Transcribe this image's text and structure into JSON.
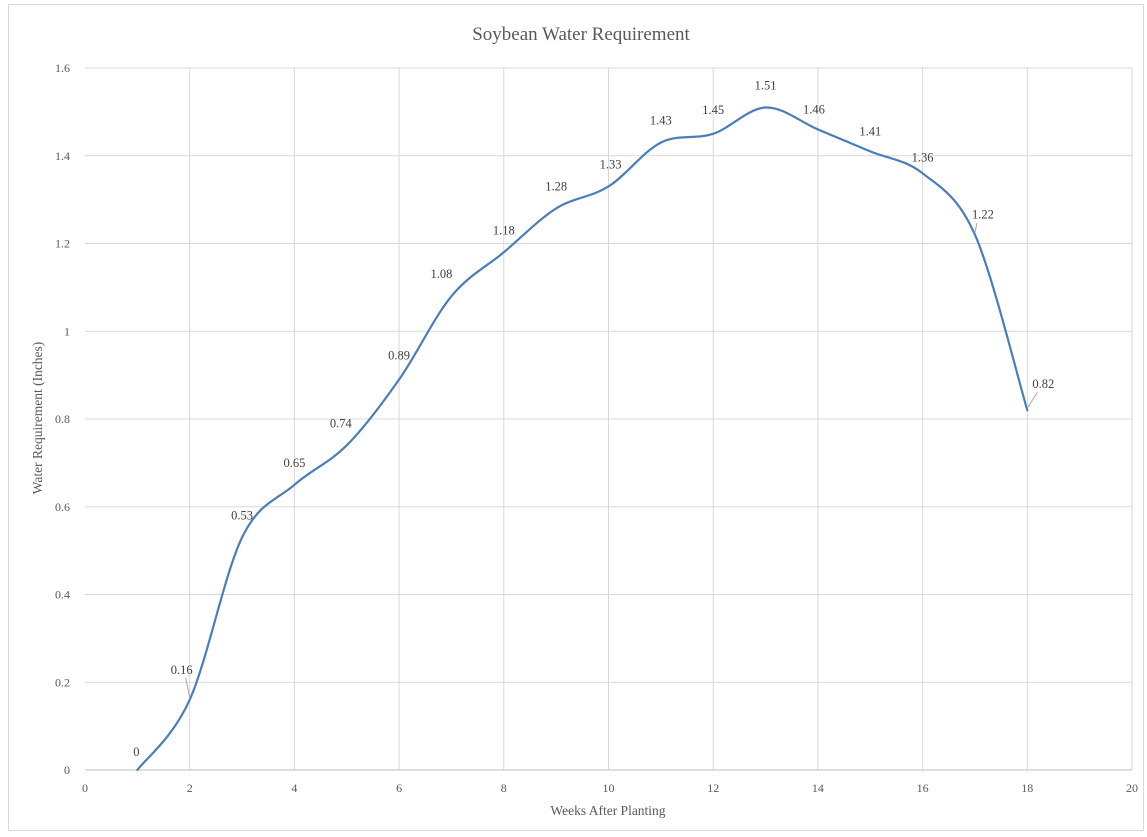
{
  "chart_data": {
    "type": "line",
    "smoothed": true,
    "title": "Soybean Water Requirement",
    "xlabel": "Weeks After Planting",
    "ylabel": "Water Requirement (Inches)",
    "xlim": [
      0,
      20
    ],
    "ylim": [
      0,
      1.6
    ],
    "xticks": [
      "0",
      "2",
      "4",
      "6",
      "8",
      "10",
      "12",
      "14",
      "16",
      "18",
      "20"
    ],
    "yticks": [
      "0",
      "0.2",
      "0.4",
      "0.6",
      "0.8",
      "1",
      "1.2",
      "1.4",
      "1.6"
    ],
    "grid": true,
    "legend": "none",
    "series_color": "#4a7ebb",
    "series": [
      {
        "x": [
          1,
          2,
          3,
          4,
          5,
          6,
          7,
          8,
          9,
          10,
          11,
          12,
          13,
          14,
          15,
          16,
          17,
          18
        ],
        "values": [
          0,
          0.16,
          0.53,
          0.65,
          0.74,
          0.89,
          1.08,
          1.18,
          1.28,
          1.33,
          1.43,
          1.45,
          1.51,
          1.46,
          1.41,
          1.36,
          1.22,
          0.82
        ],
        "labels": [
          "0",
          "0.16",
          "0.53",
          "0.65",
          "0.74",
          "0.89",
          "1.08",
          "1.18",
          "1.28",
          "1.33",
          "1.43",
          "1.45",
          "1.51",
          "1.46",
          "1.41",
          "1.36",
          "1.22",
          "0.82"
        ]
      }
    ]
  }
}
